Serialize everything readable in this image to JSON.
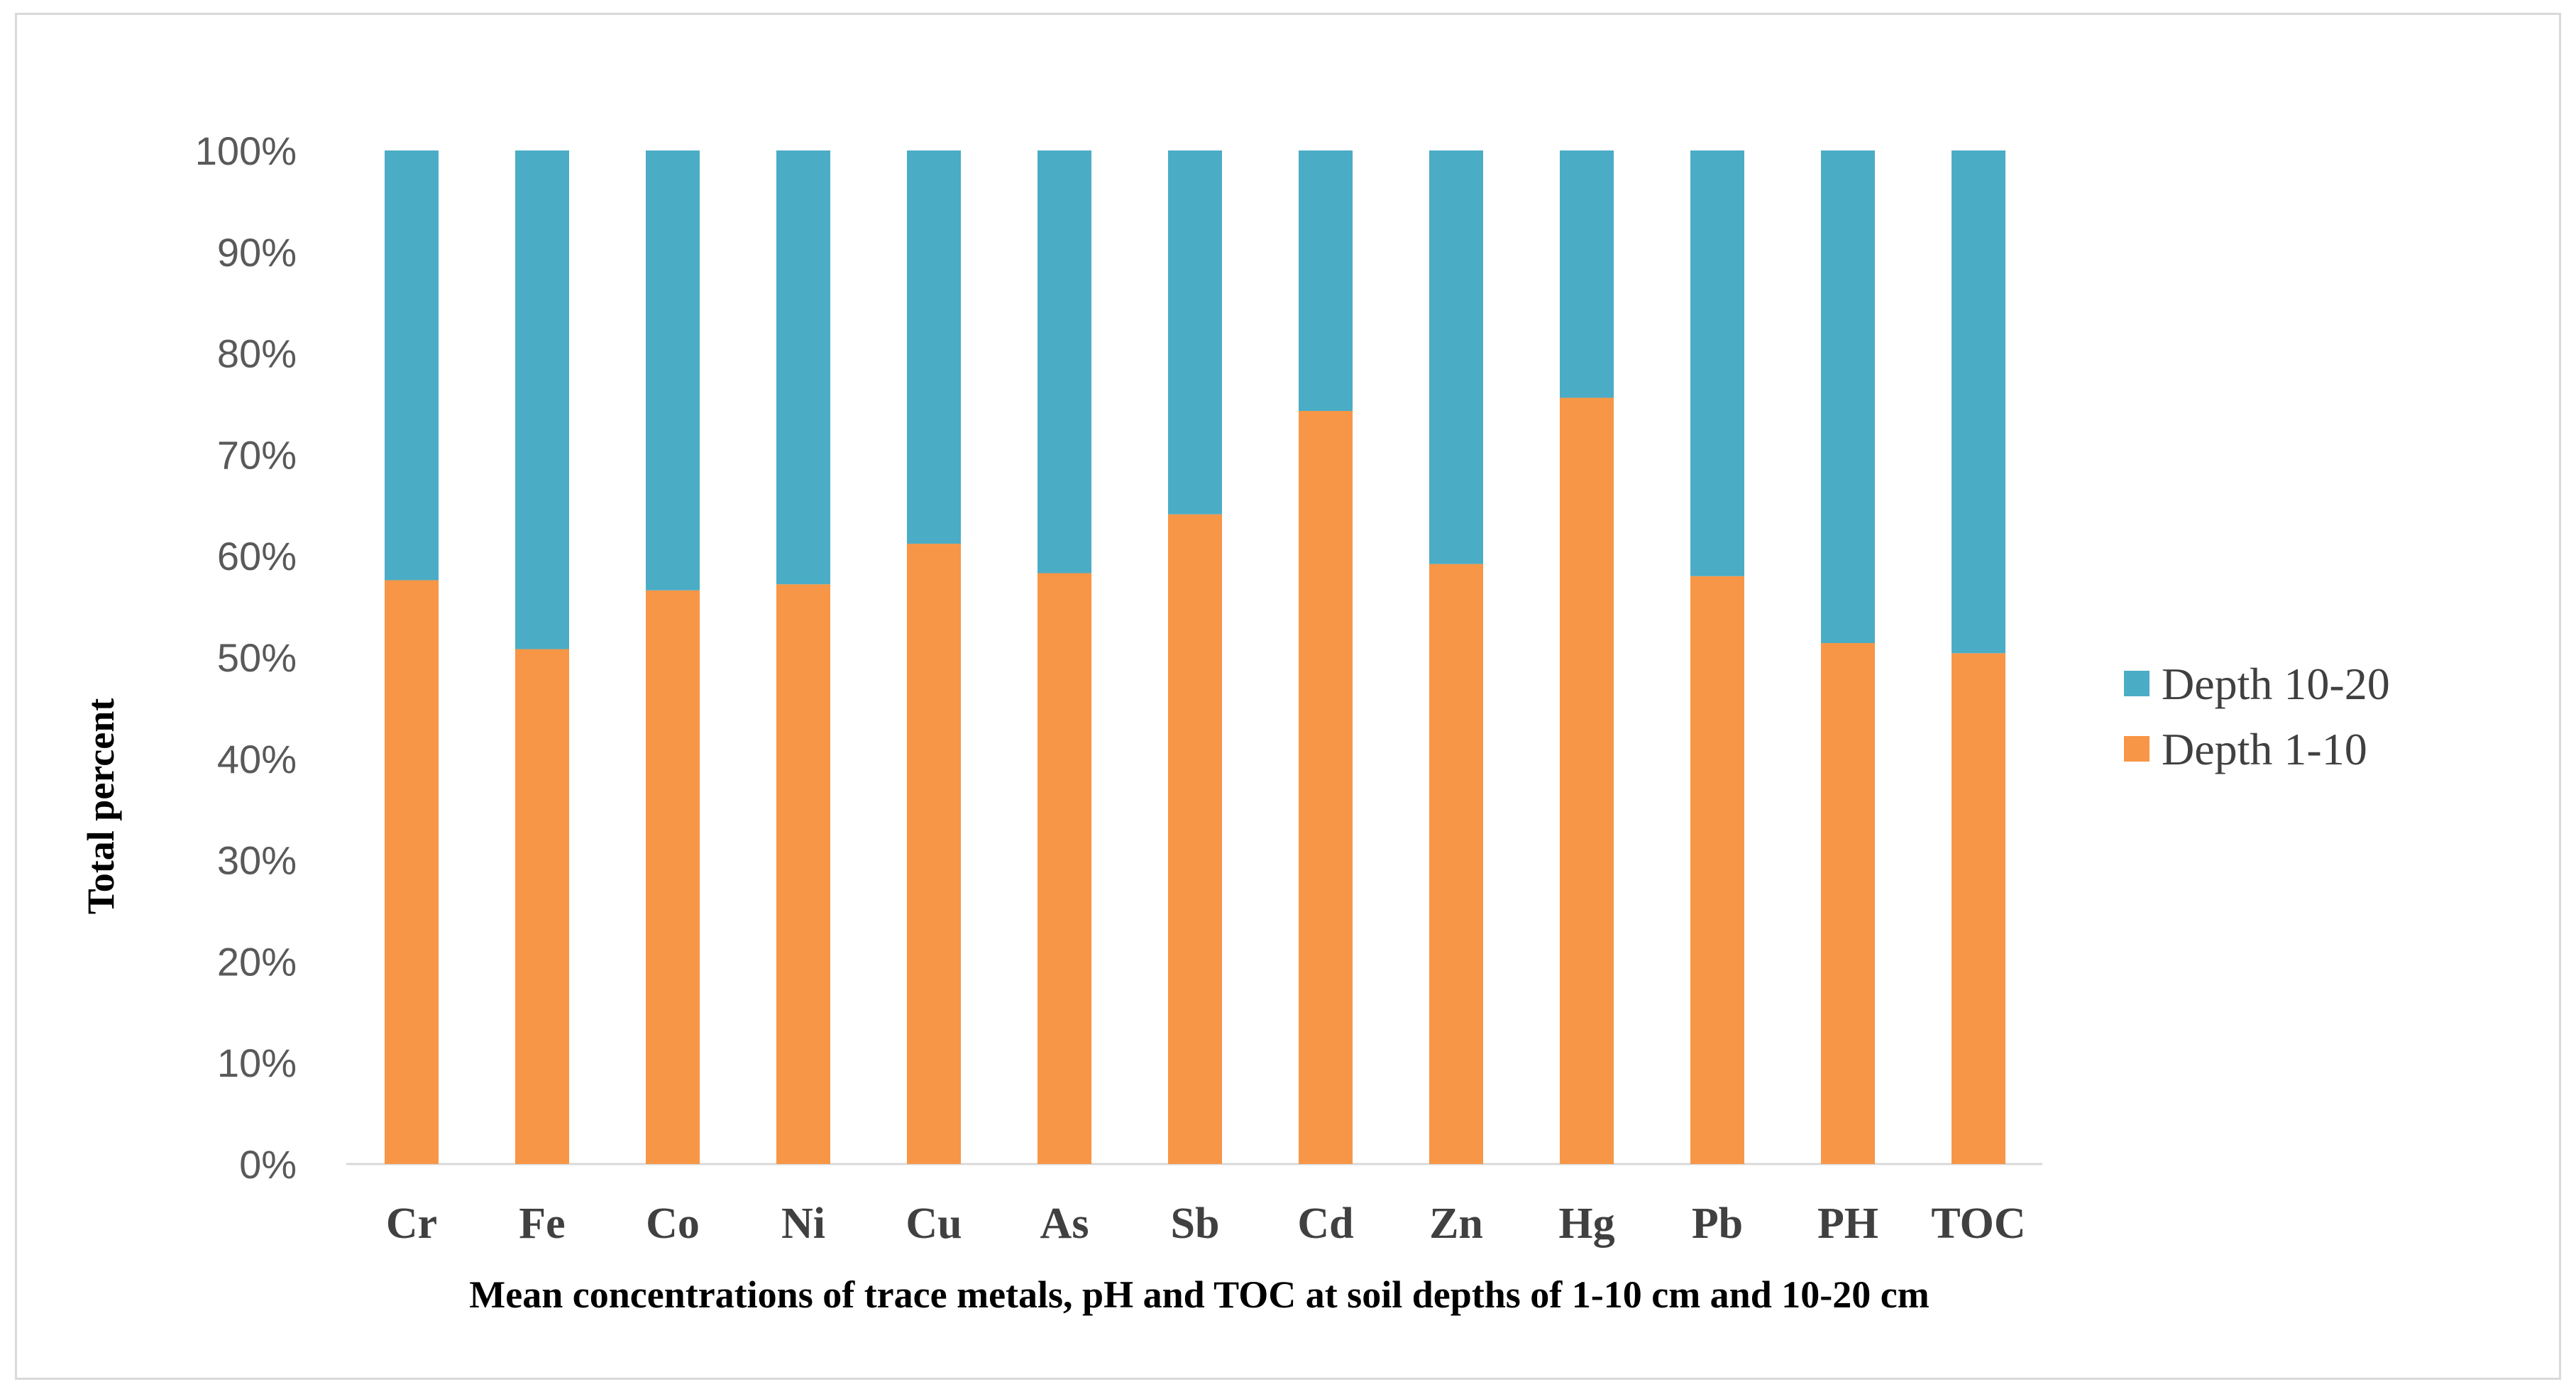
{
  "chart_data": {
    "type": "bar",
    "stacked": true,
    "percent_stacked": true,
    "title": "",
    "xlabel": "Mean concentrations of trace metals, pH and TOC  at soil depths of 1-10 cm and 10-20 cm",
    "ylabel": "Total percent",
    "ylim": [
      0,
      100
    ],
    "yticks": [
      "0%",
      "10%",
      "20%",
      "30%",
      "40%",
      "50%",
      "60%",
      "70%",
      "80%",
      "90%",
      "100%"
    ],
    "categories": [
      "Cr",
      "Fe",
      "Co",
      "Ni",
      "Cu",
      "As",
      "Sb",
      "Cd",
      "Zn",
      "Hg",
      "Pb",
      "PH",
      "TOC"
    ],
    "series": [
      {
        "name": "Depth 1-10",
        "color": "#F79646",
        "values": [
          57.6,
          50.8,
          56.6,
          57.2,
          61.2,
          58.3,
          64.1,
          74.3,
          59.2,
          75.6,
          58.0,
          51.4,
          50.4
        ]
      },
      {
        "name": "Depth 10-20",
        "color": "#4BACC6",
        "values": [
          42.4,
          49.2,
          43.4,
          42.8,
          38.8,
          41.7,
          35.9,
          25.7,
          40.8,
          24.4,
          42.0,
          48.6,
          49.6
        ]
      }
    ],
    "legend": {
      "position": "right",
      "entries": [
        "Depth 10-20",
        "Depth 1-10"
      ]
    },
    "grid": false,
    "axis_color": "#d9d9d9"
  }
}
